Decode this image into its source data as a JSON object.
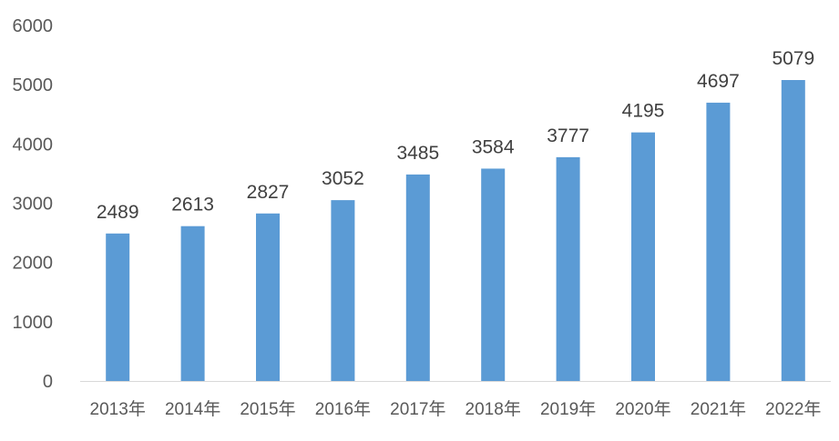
{
  "chart_data": {
    "type": "bar",
    "categories": [
      "2013年",
      "2014年",
      "2015年",
      "2016年",
      "2017年",
      "2018年",
      "2019年",
      "2020年",
      "2021年",
      "2022年"
    ],
    "values": [
      2489,
      2613,
      2827,
      3052,
      3485,
      3584,
      3777,
      4195,
      4697,
      5079
    ],
    "ylim": [
      0,
      6000
    ],
    "yticks": [
      0,
      1000,
      2000,
      3000,
      4000,
      5000,
      6000
    ],
    "data_labels": true,
    "grid": false,
    "colors": {
      "bar": "#5b9bd5",
      "axis": "#d9d9d9",
      "tick_text": "#595959",
      "label_text": "#404040"
    }
  }
}
